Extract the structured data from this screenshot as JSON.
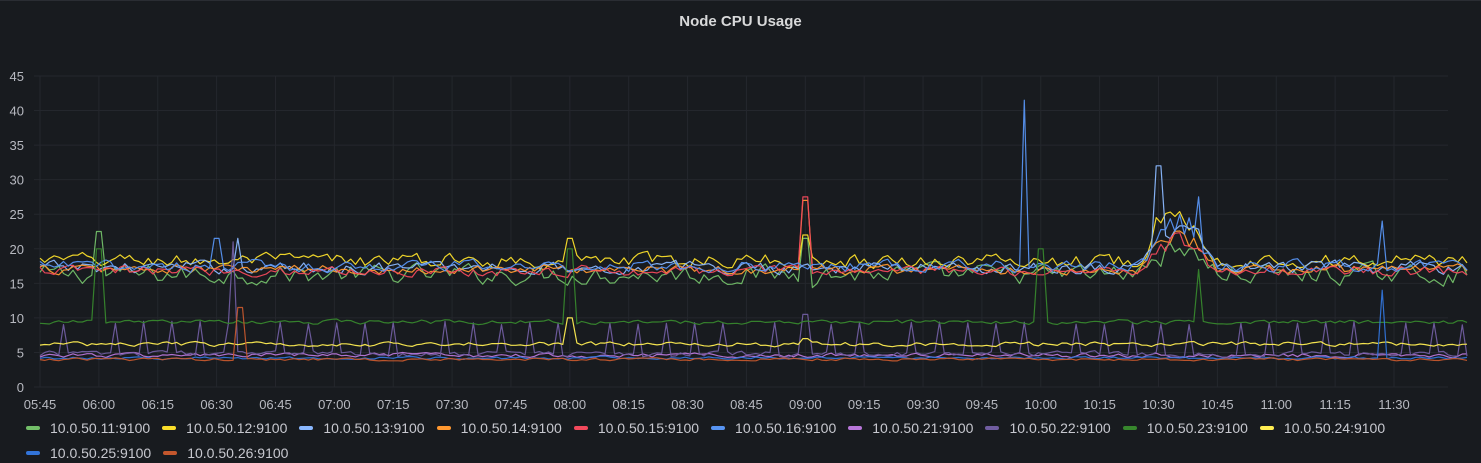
{
  "panel": {
    "title": "Node CPU Usage"
  },
  "chart_data": {
    "type": "line",
    "title": "Node CPU Usage",
    "xlabel": "",
    "ylabel": "",
    "x_ticks": [
      "05:45",
      "06:00",
      "06:15",
      "06:30",
      "06:45",
      "07:00",
      "07:15",
      "07:30",
      "07:45",
      "08:00",
      "08:15",
      "08:30",
      "08:45",
      "09:00",
      "09:15",
      "09:30",
      "09:45",
      "10:00",
      "10:15",
      "10:30",
      "10:45",
      "11:00",
      "11:15",
      "11:30"
    ],
    "x_range": [
      "05:45",
      "11:49"
    ],
    "ylim": [
      0,
      45
    ],
    "y_ticks": [
      0,
      5,
      10,
      15,
      20,
      25,
      30,
      35,
      40,
      45
    ],
    "grid": true,
    "legend_position": "bottom",
    "series": [
      {
        "name": "10.0.50.11:9100",
        "color": "#73bf69",
        "baseline": 16.3,
        "noise": 2.2,
        "spikes": [
          [
            "06:00",
            22.5
          ],
          [
            "09:00",
            21.5
          ]
        ],
        "bump": [
          [
            "10:25",
            "10:45",
            4
          ]
        ]
      },
      {
        "name": "10.0.50.12:9100",
        "color": "#fade2a",
        "baseline": 18.3,
        "noise": 1.6,
        "spikes": [
          [
            "08:00",
            21.5
          ],
          [
            "09:00",
            22
          ]
        ],
        "bump": [
          [
            "10:25",
            "10:45",
            7
          ]
        ]
      },
      {
        "name": "10.0.50.13:9100",
        "color": "#8ab8ff",
        "baseline": 17.3,
        "noise": 1.4,
        "spikes": [
          [
            "06:35",
            21.5
          ],
          [
            "10:30",
            32
          ]
        ],
        "bump": [
          [
            "10:25",
            "10:45",
            6
          ]
        ]
      },
      {
        "name": "10.0.50.14:9100",
        "color": "#ff9830",
        "baseline": 17.0,
        "noise": 1.1,
        "spikes": [
          [
            "09:00",
            27
          ]
        ],
        "bump": [
          [
            "10:25",
            "10:45",
            5
          ]
        ]
      },
      {
        "name": "10.0.50.15:9100",
        "color": "#f2495c",
        "baseline": 16.8,
        "noise": 1.2,
        "spikes": [
          [
            "09:00",
            27.5
          ]
        ],
        "bump": [
          [
            "10:25",
            "10:45",
            5
          ]
        ]
      },
      {
        "name": "10.0.50.16:9100",
        "color": "#5794f2",
        "baseline": 17.5,
        "noise": 1.3,
        "spikes": [
          [
            "09:56",
            41.5
          ],
          [
            "06:30",
            21.5
          ],
          [
            "10:40",
            27.5
          ],
          [
            "11:27",
            24
          ]
        ],
        "bump": [
          [
            "10:25",
            "10:45",
            6
          ]
        ]
      },
      {
        "name": "10.0.50.21:9100",
        "color": "#b877d9",
        "baseline": 4.6,
        "noise": 0.5,
        "spikes": [],
        "bump": []
      },
      {
        "name": "10.0.50.22:9100",
        "color": "#705da0",
        "baseline": 4.8,
        "noise": 0.6,
        "spikes": [
          [
            "06:34",
            21
          ],
          [
            "09:00",
            10.5
          ]
        ],
        "periodic": [
          9,
          9.5
        ]
      },
      {
        "name": "10.0.50.23:9100",
        "color": "#37872d",
        "baseline": 9.4,
        "noise": 0.5,
        "spikes": [
          [
            "06:00",
            20
          ],
          [
            "08:00",
            20
          ],
          [
            "10:00",
            20
          ],
          [
            "10:40",
            17
          ]
        ],
        "bump": []
      },
      {
        "name": "10.0.50.24:9100",
        "color": "#ffee52",
        "baseline": 6.2,
        "noise": 0.5,
        "spikes": [
          [
            "08:00",
            10
          ],
          [
            "09:00",
            7
          ]
        ],
        "bump": []
      },
      {
        "name": "10.0.50.25:9100",
        "color": "#3274d9",
        "baseline": 4.2,
        "noise": 0.3,
        "spikes": [
          [
            "11:27",
            14
          ]
        ],
        "bump": []
      },
      {
        "name": "10.0.50.26:9100",
        "color": "#c4572d",
        "baseline": 4.0,
        "noise": 0.3,
        "spikes": [
          [
            "06:36",
            11.5
          ]
        ],
        "bump": []
      }
    ]
  }
}
